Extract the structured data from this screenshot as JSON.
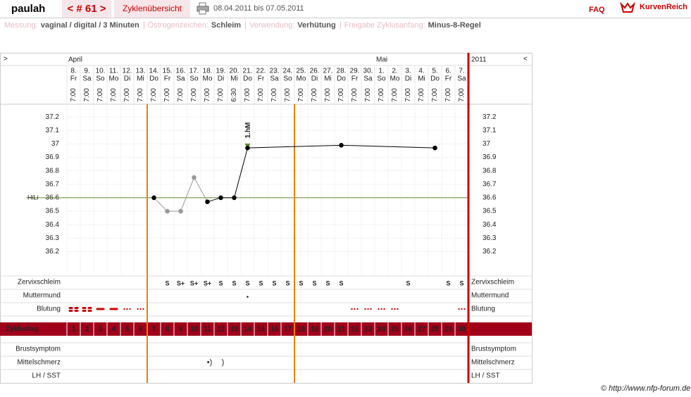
{
  "header": {
    "user": "paulah",
    "cycle": "< # 61 >",
    "overview": "Zyklenübersicht",
    "period": "08.04.2011 bis 07.05.2011",
    "faq": "FAQ",
    "logo": "KurvenReich"
  },
  "settings": [
    {
      "label": "Messung:",
      "value": "vaginal / digital / 3 Minuten"
    },
    {
      "label": "Östrogenzeichen:",
      "value": "Schleim"
    },
    {
      "label": "Verwendung:",
      "value": "Verhütung"
    },
    {
      "label": "Freigabe Zyklusanfang:",
      "value": "Minus-8-Regel"
    }
  ],
  "footer": "© http://www.nfp-forum.de",
  "chart_data": {
    "type": "line",
    "nav_next": ">",
    "nav_prev": "<",
    "year": "2011",
    "months": [
      "April",
      null,
      null,
      null,
      null,
      null,
      null,
      null,
      null,
      null,
      null,
      null,
      null,
      null,
      null,
      null,
      null,
      null,
      null,
      null,
      null,
      null,
      null,
      "Mai",
      null,
      null,
      null,
      null,
      null,
      null
    ],
    "categories": [
      "8.",
      "9.",
      "10.",
      "11.",
      "12.",
      "13.",
      "14.",
      "15.",
      "16.",
      "17.",
      "18.",
      "19.",
      "20.",
      "21.",
      "22.",
      "23.",
      "24.",
      "25.",
      "26.",
      "27.",
      "28.",
      "29.",
      "30.",
      "1.",
      "2.",
      "3.",
      "4.",
      "5.",
      "6.",
      "7."
    ],
    "weekdays": [
      "Fr",
      "Sa",
      "So",
      "Mo",
      "Di",
      "Mi",
      "Do",
      "Fr",
      "Sa",
      "So",
      "Mo",
      "Di",
      "Mi",
      "Do",
      "Fr",
      "Sa",
      "So",
      "Mo",
      "Di",
      "Mi",
      "Do",
      "Fr",
      "Sa",
      "So",
      "Mo",
      "Di",
      "Mi",
      "Do",
      "Fr",
      "Sa"
    ],
    "times": [
      "7:00",
      "7:00",
      "7:00",
      "7:00",
      "7:00",
      "7:00",
      "7:00",
      "7:00",
      "7:00",
      "7:00",
      "7:00",
      "7:00",
      "6:30",
      "7:00",
      "7:00",
      "7:00",
      "7:00",
      "7:00",
      "7:00",
      "7:00",
      "7:00",
      "7:00",
      "7:00",
      "7:00",
      "7:00",
      "7:00",
      "7:00",
      "7:00",
      "7:00",
      "7:00"
    ],
    "values": [
      null,
      null,
      null,
      null,
      null,
      null,
      36.6,
      36.5,
      36.5,
      36.75,
      36.57,
      36.6,
      36.6,
      36.97,
      null,
      null,
      null,
      null,
      null,
      null,
      36.99,
      null,
      null,
      null,
      null,
      null,
      null,
      36.97,
      null,
      null
    ],
    "color": "#000000",
    "excluded_color": "#999999",
    "excluded": [
      false,
      false,
      false,
      false,
      false,
      false,
      false,
      true,
      true,
      true,
      false,
      false,
      false,
      false,
      false,
      false,
      false,
      false,
      false,
      false,
      false,
      false,
      false,
      false,
      false,
      false,
      false,
      false,
      false,
      false
    ],
    "ylim": [
      36.03,
      37.3
    ],
    "yticks": [
      37.2,
      37.1,
      37,
      36.9,
      36.8,
      36.7,
      36.6,
      36.5,
      36.4,
      36.3,
      36.2
    ],
    "grid": true,
    "coverline": {
      "label": "HiLi",
      "value": 36.6,
      "color": "#5a8a2a"
    },
    "annotations": [
      null,
      null,
      null,
      null,
      null,
      null,
      null,
      null,
      null,
      null,
      null,
      null,
      null,
      "1.hM",
      null,
      null,
      null,
      null,
      null,
      null,
      null,
      null,
      null,
      null,
      null,
      null,
      null,
      null,
      null,
      null
    ],
    "rows": [
      {
        "label": "Zervixschleim",
        "color": "#e8820c",
        "values": [
          null,
          null,
          null,
          null,
          null,
          null,
          null,
          "S",
          "S+",
          "S+",
          "S+",
          "S",
          "S",
          "S",
          "S",
          "S",
          "S",
          "S",
          "S",
          "S",
          "S",
          null,
          null,
          null,
          null,
          "S",
          null,
          null,
          "S",
          "S"
        ]
      },
      {
        "label": "Muttermund",
        "color": "#4a5fc8",
        "values": [
          null,
          null,
          null,
          null,
          null,
          null,
          null,
          null,
          null,
          null,
          null,
          null,
          null,
          "•",
          null,
          null,
          null,
          null,
          null,
          null,
          null,
          null,
          null,
          null,
          null,
          null,
          null,
          null,
          null,
          null
        ]
      },
      {
        "label": "Blutung",
        "color": "#cc0000",
        "values": [
          3,
          3,
          2,
          2,
          1,
          1,
          null,
          null,
          null,
          null,
          null,
          null,
          null,
          null,
          null,
          null,
          null,
          null,
          null,
          null,
          null,
          1,
          1,
          1,
          1,
          null,
          null,
          null,
          null,
          1
        ]
      }
    ],
    "cycle": {
      "label": "Zyklustag",
      "values": [
        1,
        2,
        3,
        4,
        5,
        6,
        7,
        8,
        9,
        10,
        11,
        12,
        13,
        14,
        15,
        16,
        17,
        18,
        19,
        20,
        21,
        22,
        23,
        24,
        25,
        26,
        27,
        28,
        29,
        30
      ],
      "fertile_window": [
        7,
        17
      ],
      "fertile_color": "#e8820c",
      "color": "#a0001a"
    },
    "lower_rows": [
      {
        "label": "Brustsymptom"
      },
      {
        "label": "Mittelschmerz",
        "values": [
          null,
          null,
          null,
          null,
          null,
          null,
          null,
          null,
          null,
          null,
          "•)",
          ")",
          null,
          null,
          null,
          null,
          null,
          null,
          null,
          null,
          null,
          null,
          null,
          null,
          null,
          null,
          null,
          null,
          null,
          null
        ]
      },
      {
        "label": "LH / SST"
      }
    ]
  }
}
